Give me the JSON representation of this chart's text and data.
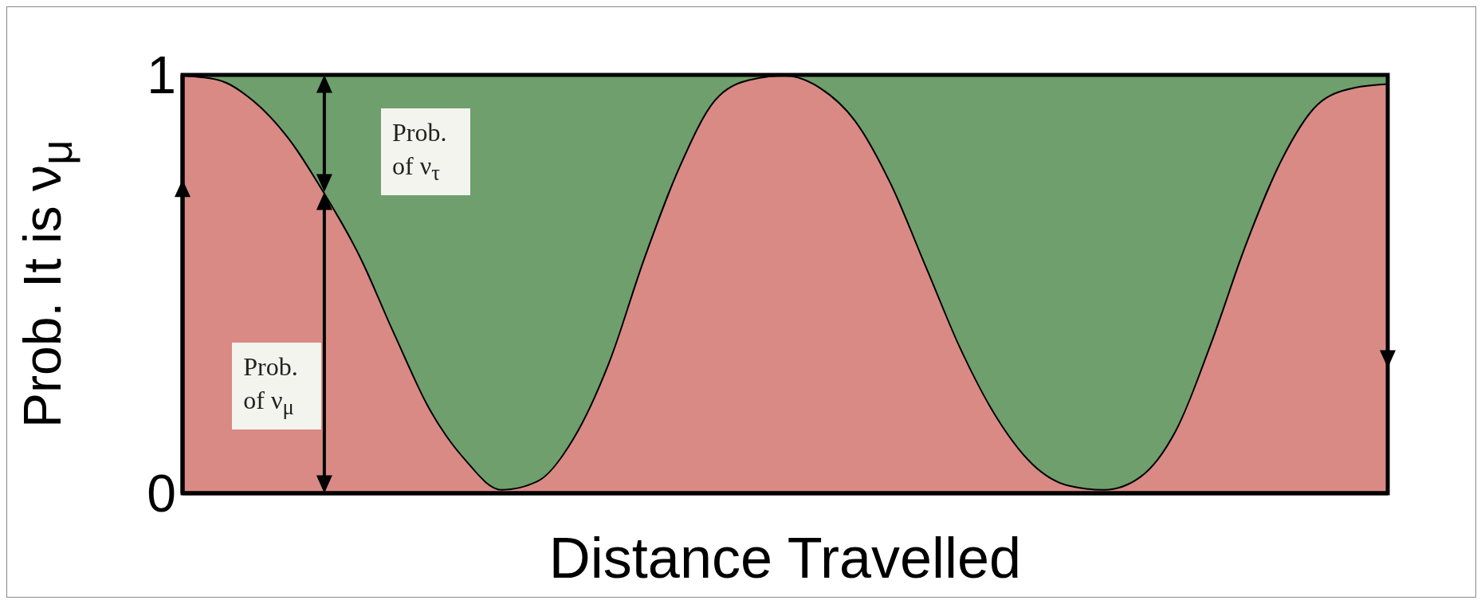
{
  "chart_data": {
    "type": "area",
    "stacked": true,
    "ylabel": "Prob. It is ν$_{μ}$",
    "xlabel": "Distance Travelled",
    "categories": [
      null,
      null,
      null,
      null,
      null,
      null,
      null,
      null,
      null,
      null,
      null,
      null,
      null,
      null,
      null,
      null,
      null,
      null,
      null,
      null,
      null,
      null,
      null,
      null,
      null,
      null,
      null,
      null,
      null,
      null,
      null,
      null,
      null,
      null,
      null
    ],
    "series": [
      {
        "name": "Prob. of ν$_{μ}$",
        "color": "#d98a84",
        "values": [
          1.0,
          0.99,
          0.94,
          0.85,
          0.72,
          0.57,
          0.38,
          0.2,
          0.08,
          0.01,
          0.03,
          0.13,
          0.31,
          0.56,
          0.78,
          0.94,
          0.99,
          1.0,
          0.97,
          0.89,
          0.74,
          0.54,
          0.34,
          0.18,
          0.07,
          0.02,
          0.01,
          0.04,
          0.15,
          0.36,
          0.6,
          0.8,
          0.93,
          0.97,
          0.98
        ]
      },
      {
        "name": "Prob. of ν$_{τ}$",
        "color": "#6f9f6c",
        "values": [
          0.0,
          0.01,
          0.06,
          0.15,
          0.28,
          0.43,
          0.62,
          0.8,
          0.92,
          0.99,
          0.97,
          0.87,
          0.69,
          0.44,
          0.22,
          0.06,
          0.01,
          0.0,
          0.03,
          0.11,
          0.26,
          0.46,
          0.66,
          0.82,
          0.93,
          0.98,
          0.99,
          0.96,
          0.85,
          0.64,
          0.4,
          0.2,
          0.07,
          0.03,
          0.02
        ]
      }
    ],
    "ylim": [
      0,
      1
    ],
    "yticks": [
      0,
      1
    ],
    "legend": false,
    "tick_labels": "y"
  }
}
